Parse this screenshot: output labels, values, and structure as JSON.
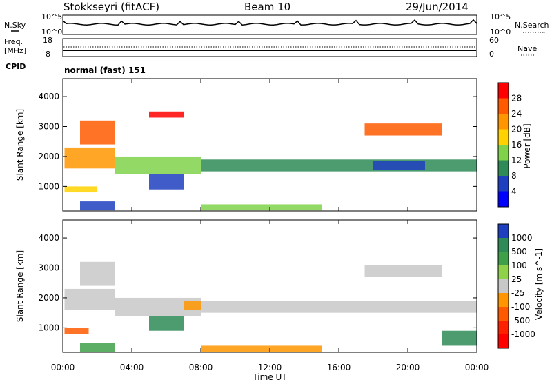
{
  "header": {
    "radar": "Stokkseyri (fitACF)",
    "beam": "Beam 10",
    "date": "29/Jun/2014"
  },
  "noise_panel": {
    "left_label": "N.Sky",
    "right_label": "N.Search",
    "left_ticks": [
      "10^5",
      "10^0"
    ],
    "right_ticks": [
      "10^5",
      "10^0"
    ]
  },
  "freq_panel": {
    "left_label": "Freq.",
    "left_unit": "[MHz]",
    "left_ticks": [
      "18",
      "8"
    ],
    "right_label": "Nave",
    "right_ticks": [
      "60",
      "0"
    ]
  },
  "cpid": {
    "label": "CPID",
    "text": "normal (fast) 151"
  },
  "time_axis": {
    "label": "Time UT",
    "ticks": [
      "00:00",
      "04:00",
      "08:00",
      "12:00",
      "16:00",
      "20:00",
      "00:00"
    ],
    "range_hours": [
      0,
      24
    ]
  },
  "chart_data": [
    {
      "type": "heatmap",
      "name": "power",
      "ylabel": "Slant Range [km]",
      "ylim": [
        180,
        4600
      ],
      "yticks": [
        "4000",
        "3000",
        "2000",
        "1000"
      ],
      "colorbar": {
        "label": "Power [dB]",
        "tick_labels": [
          "28",
          "24",
          "20",
          "16",
          "12",
          "8",
          "4"
        ],
        "colors": [
          "#ff0000",
          "#ff5a00",
          "#ff9600",
          "#ffd200",
          "#7fd24a",
          "#2e8b57",
          "#1e3fbf",
          "#0000ff"
        ]
      },
      "regions": [
        {
          "t": [
            0.1,
            3.0
          ],
          "r": [
            1600,
            2300
          ],
          "level": 2
        },
        {
          "t": [
            3.0,
            8.0
          ],
          "r": [
            1400,
            2000
          ],
          "level": 4
        },
        {
          "t": [
            8.0,
            24.0
          ],
          "r": [
            1500,
            1900
          ],
          "level": 5
        },
        {
          "t": [
            18.0,
            21.0
          ],
          "r": [
            1550,
            1850
          ],
          "level": 6
        },
        {
          "t": [
            1.0,
            3.0
          ],
          "r": [
            2400,
            3200
          ],
          "level": 1
        },
        {
          "t": [
            5.0,
            7.0
          ],
          "r": [
            900,
            1400
          ],
          "level": 6
        },
        {
          "t": [
            0.1,
            2.0
          ],
          "r": [
            800,
            1000
          ],
          "level": 3
        },
        {
          "t": [
            1.0,
            3.0
          ],
          "r": [
            200,
            500
          ],
          "level": 6
        },
        {
          "t": [
            8.0,
            15.0
          ],
          "r": [
            200,
            400
          ],
          "level": 4
        },
        {
          "t": [
            17.5,
            22.0
          ],
          "r": [
            2700,
            3100
          ],
          "level": 1
        },
        {
          "t": [
            5.0,
            7.0
          ],
          "r": [
            3300,
            3500
          ],
          "level": 0
        }
      ]
    },
    {
      "type": "heatmap",
      "name": "velocity",
      "ylabel": "Slant Range [km]",
      "ylim": [
        180,
        4600
      ],
      "yticks": [
        "4000",
        "3000",
        "2000",
        "1000"
      ],
      "colorbar": {
        "label": "Velocity [m s^-1]",
        "tick_labels": [
          "1000",
          "500",
          "100",
          "25",
          "-25",
          "-100",
          "-500",
          "-1000"
        ],
        "colors": [
          "#1e3fbf",
          "#2e8b57",
          "#3fa04a",
          "#8fd24a",
          "#c8c8c8",
          "#ff9600",
          "#ff5a00",
          "#ff2000",
          "#ff0000"
        ]
      },
      "regions": [
        {
          "t": [
            0.1,
            3.0
          ],
          "r": [
            1600,
            2300
          ],
          "level": 4
        },
        {
          "t": [
            3.0,
            8.0
          ],
          "r": [
            1400,
            2000
          ],
          "level": 4
        },
        {
          "t": [
            8.0,
            24.0
          ],
          "r": [
            1500,
            1900
          ],
          "level": 4
        },
        {
          "t": [
            1.0,
            3.0
          ],
          "r": [
            2400,
            3200
          ],
          "level": 4
        },
        {
          "t": [
            5.0,
            7.0
          ],
          "r": [
            900,
            1400
          ],
          "level": 1
        },
        {
          "t": [
            0.1,
            1.5
          ],
          "r": [
            800,
            1000
          ],
          "level": 6
        },
        {
          "t": [
            1.0,
            3.0
          ],
          "r": [
            200,
            500
          ],
          "level": 2
        },
        {
          "t": [
            8.0,
            15.0
          ],
          "r": [
            200,
            400
          ],
          "level": 5
        },
        {
          "t": [
            17.5,
            22.0
          ],
          "r": [
            2700,
            3100
          ],
          "level": 4
        },
        {
          "t": [
            7.0,
            8.0
          ],
          "r": [
            1600,
            1900
          ],
          "level": 5
        },
        {
          "t": [
            22.0,
            24.0
          ],
          "r": [
            400,
            900
          ],
          "level": 1
        }
      ]
    }
  ]
}
